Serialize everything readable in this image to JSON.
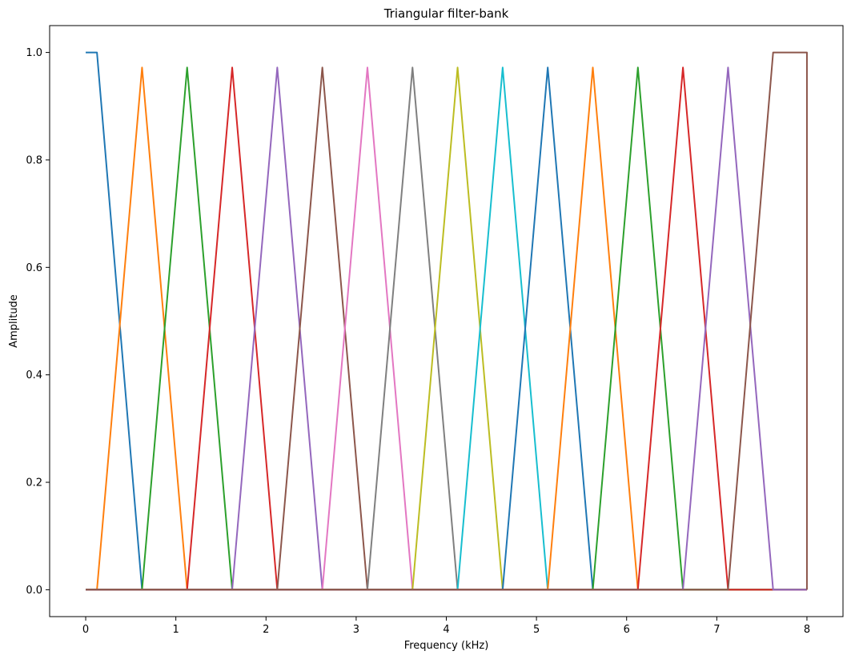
{
  "chart_data": {
    "type": "line",
    "title": "Triangular filter-bank",
    "xlabel": "Frequency (kHz)",
    "ylabel": "Amplitude",
    "xlim": [
      -0.4,
      8.4
    ],
    "ylim": [
      -0.05,
      1.05
    ],
    "xticks": [
      "0",
      "1",
      "2",
      "3",
      "4",
      "5",
      "6",
      "7",
      "8"
    ],
    "yticks": [
      "0.0",
      "0.2",
      "0.4",
      "0.6",
      "0.8",
      "1.0"
    ],
    "grid": false,
    "legend": "none",
    "series": [
      {
        "color": "#1f77b4",
        "x": [
          0,
          0.125,
          0.625,
          8
        ],
        "y": [
          1,
          1,
          0,
          0
        ]
      },
      {
        "color": "#ff7f0e",
        "x": [
          0,
          0.125,
          0.625,
          1.125,
          8
        ],
        "y": [
          0,
          0,
          0.972,
          0,
          0
        ]
      },
      {
        "color": "#2ca02c",
        "x": [
          0,
          0.625,
          1.125,
          1.625,
          8
        ],
        "y": [
          0,
          0,
          0.972,
          0,
          0
        ]
      },
      {
        "color": "#d62728",
        "x": [
          0,
          1.125,
          1.625,
          2.125,
          8
        ],
        "y": [
          0,
          0,
          0.972,
          0,
          0
        ]
      },
      {
        "color": "#9467bd",
        "x": [
          0,
          1.625,
          2.125,
          2.625,
          8
        ],
        "y": [
          0,
          0,
          0.972,
          0,
          0
        ]
      },
      {
        "color": "#8c564b",
        "x": [
          0,
          2.125,
          2.625,
          3.125,
          8
        ],
        "y": [
          0,
          0,
          0.972,
          0,
          0
        ]
      },
      {
        "color": "#e377c2",
        "x": [
          0,
          2.625,
          3.125,
          3.625,
          8
        ],
        "y": [
          0,
          0,
          0.972,
          0,
          0
        ]
      },
      {
        "color": "#7f7f7f",
        "x": [
          0,
          3.125,
          3.625,
          4.125,
          8
        ],
        "y": [
          0,
          0,
          0.972,
          0,
          0
        ]
      },
      {
        "color": "#bcbd22",
        "x": [
          0,
          3.625,
          4.125,
          4.625,
          8
        ],
        "y": [
          0,
          0,
          0.972,
          0,
          0
        ]
      },
      {
        "color": "#17becf",
        "x": [
          0,
          4.125,
          4.625,
          5.125,
          8
        ],
        "y": [
          0,
          0,
          0.972,
          0,
          0
        ]
      },
      {
        "color": "#1f77b4",
        "x": [
          0,
          4.625,
          5.125,
          5.625,
          8
        ],
        "y": [
          0,
          0,
          0.972,
          0,
          0
        ]
      },
      {
        "color": "#ff7f0e",
        "x": [
          0,
          5.125,
          5.625,
          6.125,
          8
        ],
        "y": [
          0,
          0,
          0.972,
          0,
          0
        ]
      },
      {
        "color": "#2ca02c",
        "x": [
          0,
          5.625,
          6.125,
          6.625,
          8
        ],
        "y": [
          0,
          0,
          0.972,
          0,
          0
        ]
      },
      {
        "color": "#d62728",
        "x": [
          0,
          6.125,
          6.625,
          7.125,
          8
        ],
        "y": [
          0,
          0,
          0.972,
          0,
          0
        ]
      },
      {
        "color": "#9467bd",
        "x": [
          0,
          6.625,
          7.125,
          7.625,
          8
        ],
        "y": [
          0,
          0,
          0.972,
          0,
          0
        ]
      },
      {
        "color": "#8c564b",
        "x": [
          0,
          7.125,
          7.625,
          8,
          8
        ],
        "y": [
          0,
          0,
          1,
          1,
          0
        ]
      }
    ]
  }
}
